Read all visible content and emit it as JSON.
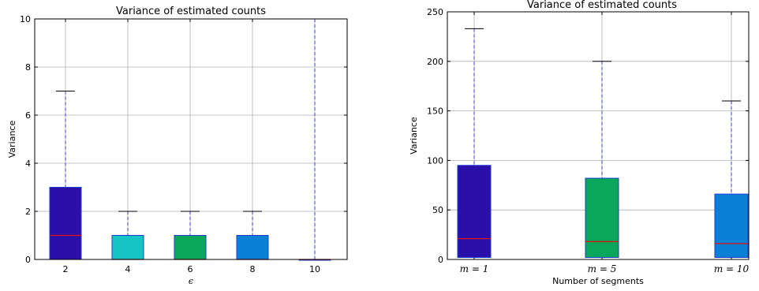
{
  "chart_data": [
    {
      "type": "box",
      "title": "Variance of estimated counts",
      "xlabel": "ϵ",
      "ylabel": "Variance",
      "ylim": [
        0,
        10
      ],
      "yticks": [
        "0",
        "2",
        "4",
        "6",
        "8",
        "10"
      ],
      "ytick_values": [
        0,
        2,
        4,
        6,
        8,
        10
      ],
      "grid": true,
      "categories": [
        "2",
        "4",
        "6",
        "8",
        "10"
      ],
      "boxes": [
        {
          "category": "2",
          "q1": 0,
          "median": 1,
          "q3": 3,
          "whisker_low": 0,
          "whisker_high": 7,
          "color": "#2a0fa8"
        },
        {
          "category": "4",
          "q1": 0,
          "median": 0,
          "q3": 1,
          "whisker_low": 0,
          "whisker_high": 2,
          "color": "#17c4c4"
        },
        {
          "category": "6",
          "q1": 0,
          "median": 0,
          "q3": 1,
          "whisker_low": 0,
          "whisker_high": 2,
          "color": "#0aa75a"
        },
        {
          "category": "8",
          "q1": 0,
          "median": 0,
          "q3": 1,
          "whisker_low": 0,
          "whisker_high": 2,
          "color": "#0a7fd6"
        },
        {
          "category": "10",
          "q1": 0,
          "median": 0,
          "q3": 0,
          "whisker_low": 0,
          "whisker_high": 10,
          "color": "#c81ee0"
        }
      ]
    },
    {
      "type": "box",
      "title": "Variance of estimated counts",
      "xlabel": "Number of segments",
      "ylabel": "Variance",
      "ylim": [
        0,
        250
      ],
      "yticks": [
        "0",
        "50",
        "100",
        "150",
        "200",
        "250"
      ],
      "ytick_values": [
        0,
        50,
        100,
        150,
        200,
        250
      ],
      "grid": true,
      "categories": [
        "m = 1",
        "m = 5",
        "m = 10"
      ],
      "boxes": [
        {
          "category": "m = 1",
          "q1": 2,
          "median": 21,
          "q3": 95,
          "whisker_low": 2,
          "whisker_high": 233,
          "color": "#2a0fa8"
        },
        {
          "category": "m = 5",
          "q1": 2,
          "median": 18,
          "q3": 82,
          "whisker_low": 2,
          "whisker_high": 200,
          "color": "#0aa75a"
        },
        {
          "category": "m = 10",
          "q1": 2,
          "median": 16,
          "q3": 66,
          "whisker_low": 2,
          "whisker_high": 160,
          "color": "#0a7fd6"
        }
      ]
    }
  ]
}
